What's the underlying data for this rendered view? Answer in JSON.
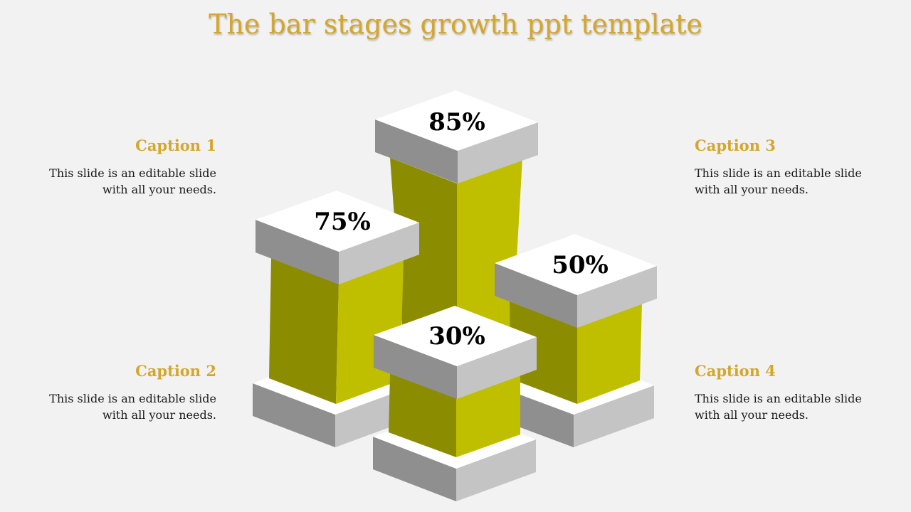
{
  "title": "The bar stages growth ppt template",
  "colors": {
    "accent": "#d4a72c",
    "bar_dark": "#8c8c00",
    "bar_light": "#bfbf00",
    "block_top": "#ffffff",
    "block_left": "#8f8f8f",
    "block_right": "#c4c4c4",
    "background": "#f2f2f2"
  },
  "captions": [
    {
      "heading": "Caption 1",
      "text": "This slide is an editable slide with all your needs."
    },
    {
      "heading": "Caption 2",
      "text": "This slide is an editable slide with all your needs."
    },
    {
      "heading": "Caption 3",
      "text": "This slide is an editable slide with all your needs."
    },
    {
      "heading": "Caption 4",
      "text": "This slide is an editable slide with all your needs."
    }
  ],
  "bars": [
    {
      "label": "85%",
      "value": 85
    },
    {
      "label": "75%",
      "value": 75
    },
    {
      "label": "50%",
      "value": 50
    },
    {
      "label": "30%",
      "value": 30
    }
  ]
}
